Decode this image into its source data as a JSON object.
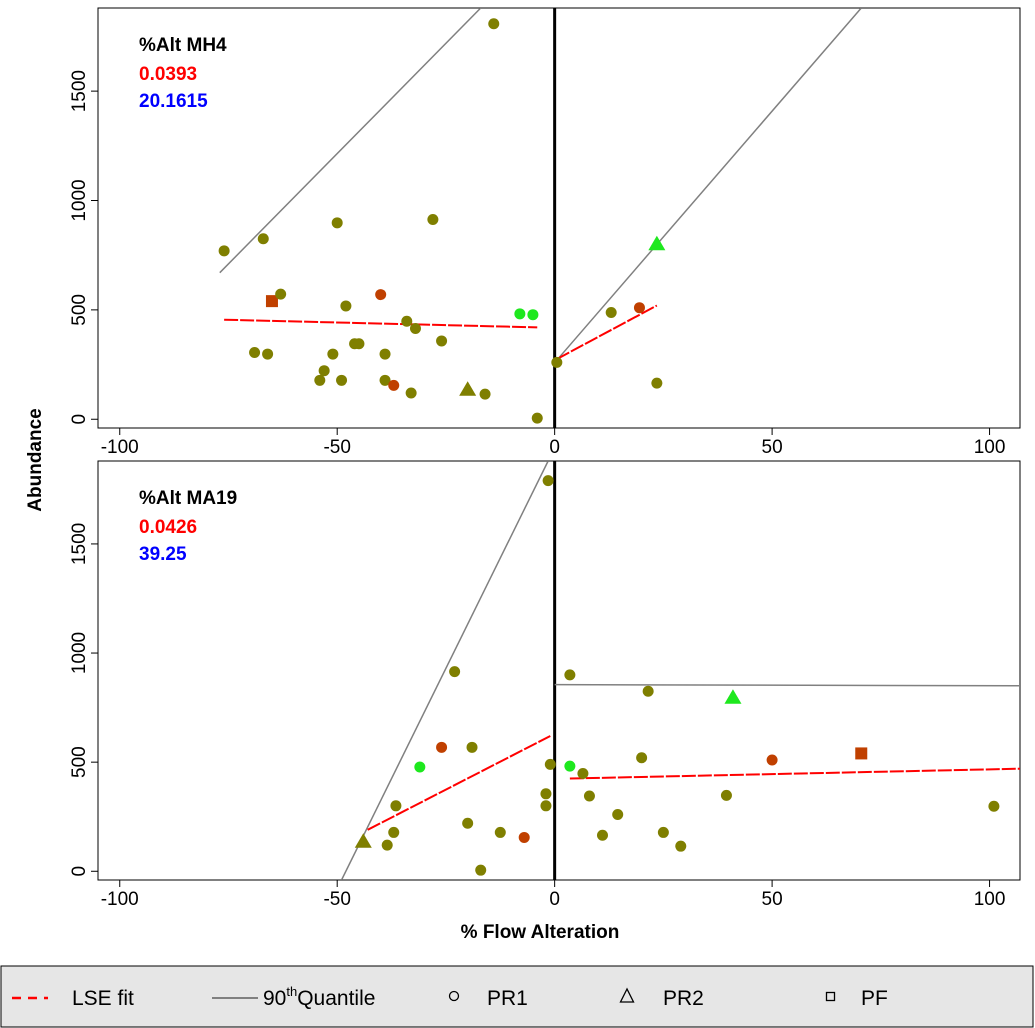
{
  "colors": {
    "olive": "#7f7f00",
    "darkorange": "#c04000",
    "green": "#1ee81e",
    "red": "#ff0000",
    "blue": "#0000ff",
    "quantile": "#808080",
    "legend_bg": "#e6e6e6"
  },
  "ylabel": "Abundance",
  "xlabel": "% Flow Alteration",
  "legend": {
    "lse_label": "LSE fit",
    "quantile_prefix": "90",
    "quantile_sup": "th",
    "quantile_suffix": "Quantile",
    "pr1_label": "PR1",
    "pr2_label": "PR2",
    "pf_label": "PF"
  },
  "chart_data": [
    {
      "type": "scatter",
      "name": "top",
      "annotation": {
        "title": "%Alt MH4",
        "red_value": "0.0393",
        "blue_value": "20.1615"
      },
      "xlim": [
        -105,
        107
      ],
      "ylim": [
        -40,
        1880
      ],
      "x_ticks": [
        -100,
        -50,
        0,
        50,
        100
      ],
      "x_tick_labels": [
        "-100",
        "-50",
        "0",
        "50",
        "100"
      ],
      "y_ticks": [
        0,
        500,
        1000,
        1500
      ],
      "y_tick_labels": [
        "0",
        "500",
        "1000",
        "1500"
      ],
      "points": [
        {
          "x": -76,
          "y": 770,
          "shape": "circle",
          "color": "olive"
        },
        {
          "x": -67,
          "y": 825,
          "shape": "circle",
          "color": "olive"
        },
        {
          "x": -65,
          "y": 540,
          "shape": "square",
          "color": "darkorange"
        },
        {
          "x": -63,
          "y": 572,
          "shape": "circle",
          "color": "olive"
        },
        {
          "x": -69,
          "y": 305,
          "shape": "circle",
          "color": "olive"
        },
        {
          "x": -66,
          "y": 298,
          "shape": "circle",
          "color": "olive"
        },
        {
          "x": -54,
          "y": 178,
          "shape": "circle",
          "color": "olive"
        },
        {
          "x": -53,
          "y": 222,
          "shape": "circle",
          "color": "olive"
        },
        {
          "x": -51,
          "y": 298,
          "shape": "circle",
          "color": "olive"
        },
        {
          "x": -50,
          "y": 898,
          "shape": "circle",
          "color": "olive"
        },
        {
          "x": -49,
          "y": 178,
          "shape": "circle",
          "color": "olive"
        },
        {
          "x": -48,
          "y": 518,
          "shape": "circle",
          "color": "olive"
        },
        {
          "x": -46,
          "y": 345,
          "shape": "circle",
          "color": "olive"
        },
        {
          "x": -45,
          "y": 345,
          "shape": "circle",
          "color": "olive"
        },
        {
          "x": -40,
          "y": 570,
          "shape": "circle",
          "color": "darkorange"
        },
        {
          "x": -39,
          "y": 298,
          "shape": "circle",
          "color": "olive"
        },
        {
          "x": -39,
          "y": 178,
          "shape": "circle",
          "color": "olive"
        },
        {
          "x": -37,
          "y": 155,
          "shape": "circle",
          "color": "darkorange"
        },
        {
          "x": -34,
          "y": 448,
          "shape": "circle",
          "color": "olive"
        },
        {
          "x": -33,
          "y": 120,
          "shape": "circle",
          "color": "olive"
        },
        {
          "x": -32,
          "y": 415,
          "shape": "circle",
          "color": "olive"
        },
        {
          "x": -28,
          "y": 913,
          "shape": "circle",
          "color": "olive"
        },
        {
          "x": -26,
          "y": 358,
          "shape": "circle",
          "color": "olive"
        },
        {
          "x": -20,
          "y": 135,
          "shape": "triangle",
          "color": "olive"
        },
        {
          "x": -16,
          "y": 115,
          "shape": "circle",
          "color": "olive"
        },
        {
          "x": -14,
          "y": 1808,
          "shape": "circle",
          "color": "olive"
        },
        {
          "x": -8,
          "y": 482,
          "shape": "circle",
          "color": "green"
        },
        {
          "x": -5,
          "y": 478,
          "shape": "circle",
          "color": "green"
        },
        {
          "x": -4,
          "y": 5,
          "shape": "circle",
          "color": "olive"
        },
        {
          "x": 0.5,
          "y": 260,
          "shape": "circle",
          "color": "olive"
        },
        {
          "x": 13,
          "y": 488,
          "shape": "circle",
          "color": "olive"
        },
        {
          "x": 19.5,
          "y": 510,
          "shape": "circle",
          "color": "darkorange"
        },
        {
          "x": 23.5,
          "y": 800,
          "shape": "triangle",
          "color": "green"
        },
        {
          "x": 23.5,
          "y": 165,
          "shape": "circle",
          "color": "olive"
        }
      ],
      "quantile_lines": [
        {
          "x1": -77,
          "y1": 670,
          "x2": -17,
          "y2": 1880
        },
        {
          "x1": 0.5,
          "y1": 270,
          "x2": 70.5,
          "y2": 1880
        }
      ],
      "lse_lines": [
        {
          "x1": -76,
          "y1": 455,
          "x2": -4,
          "y2": 420
        },
        {
          "x1": 0.5,
          "y1": 275,
          "x2": 23.5,
          "y2": 520
        }
      ]
    },
    {
      "type": "scatter",
      "name": "bottom",
      "annotation": {
        "title": "%Alt MA19",
        "red_value": "0.0426",
        "blue_value": "39.25"
      },
      "xlim": [
        -105,
        107
      ],
      "ylim": [
        -40,
        1880
      ],
      "x_ticks": [
        -100,
        -50,
        0,
        50,
        100
      ],
      "x_tick_labels": [
        "-100",
        "-50",
        "0",
        "50",
        "100"
      ],
      "y_ticks": [
        0,
        500,
        1000,
        1500
      ],
      "y_tick_labels": [
        "0",
        "500",
        "1000",
        "1500"
      ],
      "points": [
        {
          "x": -44,
          "y": 135,
          "shape": "triangle",
          "color": "olive"
        },
        {
          "x": -38.5,
          "y": 120,
          "shape": "circle",
          "color": "olive"
        },
        {
          "x": -37,
          "y": 178,
          "shape": "circle",
          "color": "olive"
        },
        {
          "x": -36.5,
          "y": 300,
          "shape": "circle",
          "color": "olive"
        },
        {
          "x": -31,
          "y": 478,
          "shape": "circle",
          "color": "green"
        },
        {
          "x": -26,
          "y": 568,
          "shape": "circle",
          "color": "darkorange"
        },
        {
          "x": -23,
          "y": 915,
          "shape": "circle",
          "color": "olive"
        },
        {
          "x": -20,
          "y": 220,
          "shape": "circle",
          "color": "olive"
        },
        {
          "x": -19,
          "y": 568,
          "shape": "circle",
          "color": "olive"
        },
        {
          "x": -17,
          "y": 5,
          "shape": "circle",
          "color": "olive"
        },
        {
          "x": -12.5,
          "y": 178,
          "shape": "circle",
          "color": "olive"
        },
        {
          "x": -7,
          "y": 155,
          "shape": "circle",
          "color": "darkorange"
        },
        {
          "x": -2,
          "y": 355,
          "shape": "circle",
          "color": "olive"
        },
        {
          "x": -2,
          "y": 300,
          "shape": "circle",
          "color": "olive"
        },
        {
          "x": -1,
          "y": 490,
          "shape": "circle",
          "color": "olive"
        },
        {
          "x": -1.5,
          "y": 1790,
          "shape": "circle",
          "color": "olive"
        },
        {
          "x": 3.5,
          "y": 900,
          "shape": "circle",
          "color": "olive"
        },
        {
          "x": 3.5,
          "y": 482,
          "shape": "circle",
          "color": "green"
        },
        {
          "x": 6.5,
          "y": 448,
          "shape": "circle",
          "color": "olive"
        },
        {
          "x": 8,
          "y": 345,
          "shape": "circle",
          "color": "olive"
        },
        {
          "x": 11,
          "y": 165,
          "shape": "circle",
          "color": "olive"
        },
        {
          "x": 14.5,
          "y": 260,
          "shape": "circle",
          "color": "olive"
        },
        {
          "x": 20,
          "y": 520,
          "shape": "circle",
          "color": "olive"
        },
        {
          "x": 21.5,
          "y": 825,
          "shape": "circle",
          "color": "olive"
        },
        {
          "x": 25,
          "y": 178,
          "shape": "circle",
          "color": "olive"
        },
        {
          "x": 29,
          "y": 115,
          "shape": "circle",
          "color": "olive"
        },
        {
          "x": 39.5,
          "y": 348,
          "shape": "circle",
          "color": "olive"
        },
        {
          "x": 41,
          "y": 795,
          "shape": "triangle",
          "color": "green"
        },
        {
          "x": 50,
          "y": 510,
          "shape": "circle",
          "color": "darkorange"
        },
        {
          "x": 70.5,
          "y": 540,
          "shape": "square",
          "color": "darkorange"
        },
        {
          "x": 101,
          "y": 298,
          "shape": "circle",
          "color": "olive"
        }
      ],
      "quantile_lines": [
        {
          "x1": -49,
          "y1": -40,
          "x2": -1.5,
          "y2": 1880
        },
        {
          "x1": 0,
          "y1": 855,
          "x2": 107,
          "y2": 850
        }
      ],
      "lse_lines": [
        {
          "x1": -43,
          "y1": 190,
          "x2": -1,
          "y2": 620
        },
        {
          "x1": 3.5,
          "y1": 425,
          "x2": 107,
          "y2": 470
        }
      ]
    }
  ]
}
